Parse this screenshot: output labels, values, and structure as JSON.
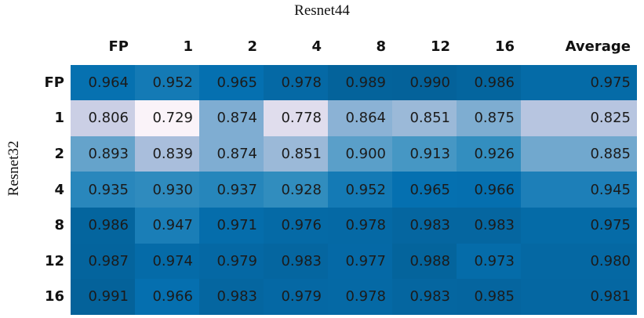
{
  "title_x": "Resnet44",
  "title_y": "Resnet32",
  "table": {
    "columns": [
      "FP",
      "1",
      "2",
      "4",
      "8",
      "12",
      "16",
      "Average"
    ],
    "rows": [
      {
        "label": "FP",
        "cells": [
          "0.964",
          "0.952",
          "0.965",
          "0.978",
          "0.989",
          "0.990",
          "0.986",
          "0.975"
        ]
      },
      {
        "label": "1",
        "cells": [
          "0.806",
          "0.729",
          "0.874",
          "0.778",
          "0.864",
          "0.851",
          "0.875",
          "0.825"
        ]
      },
      {
        "label": "2",
        "cells": [
          "0.893",
          "0.839",
          "0.874",
          "0.851",
          "0.900",
          "0.913",
          "0.926",
          "0.885"
        ]
      },
      {
        "label": "4",
        "cells": [
          "0.935",
          "0.930",
          "0.937",
          "0.928",
          "0.952",
          "0.965",
          "0.966",
          "0.945"
        ]
      },
      {
        "label": "8",
        "cells": [
          "0.986",
          "0.947",
          "0.971",
          "0.976",
          "0.978",
          "0.983",
          "0.983",
          "0.975"
        ]
      },
      {
        "label": "12",
        "cells": [
          "0.987",
          "0.974",
          "0.979",
          "0.983",
          "0.977",
          "0.988",
          "0.973",
          "0.980"
        ]
      },
      {
        "label": "16",
        "cells": [
          "0.991",
          "0.966",
          "0.983",
          "0.979",
          "0.978",
          "0.983",
          "0.985",
          "0.981"
        ]
      }
    ]
  }
}
